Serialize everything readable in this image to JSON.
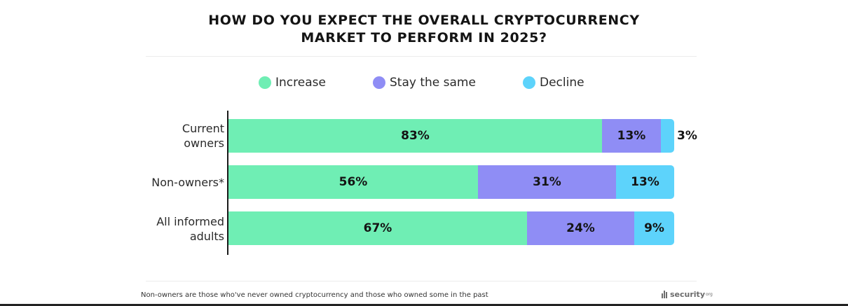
{
  "chart_data": {
    "type": "bar",
    "orientation": "horizontal",
    "stacked": true,
    "title": "HOW DO YOU EXPECT THE OVERALL CRYPTOCURRENCY MARKET TO PERFORM IN 2025?",
    "title_lines": [
      "HOW DO YOU EXPECT THE OVERALL CRYPTOCURRENCY",
      "MARKET TO PERFORM IN 2025?"
    ],
    "categories": [
      "Current owners",
      "Non-owners*",
      "All informed adults"
    ],
    "category_lines": [
      [
        "Current",
        "owners"
      ],
      [
        "Non-owners*"
      ],
      [
        "All informed",
        "adults"
      ]
    ],
    "series": [
      {
        "name": "Increase",
        "color": "#6feeb4",
        "values": [
          83,
          56,
          67
        ],
        "labels": [
          "83%",
          "56%",
          "67%"
        ]
      },
      {
        "name": "Stay the same",
        "color": "#8f8df5",
        "values": [
          13,
          31,
          24
        ],
        "labels": [
          "13%",
          "31%",
          "24%"
        ]
      },
      {
        "name": "Decline",
        "color": "#5dd3fb",
        "values": [
          3,
          13,
          9
        ],
        "labels": [
          "3%",
          "13%",
          "9%"
        ]
      }
    ],
    "xlim": [
      0,
      100
    ],
    "xlabel": "",
    "ylabel": "",
    "grid": false,
    "legend_position": "top-center",
    "footnote": "Non-owners are those who've never owned cryptocurrency and those who owned some in the past",
    "source_brand": "security",
    "source_brand_suffix": "org"
  }
}
